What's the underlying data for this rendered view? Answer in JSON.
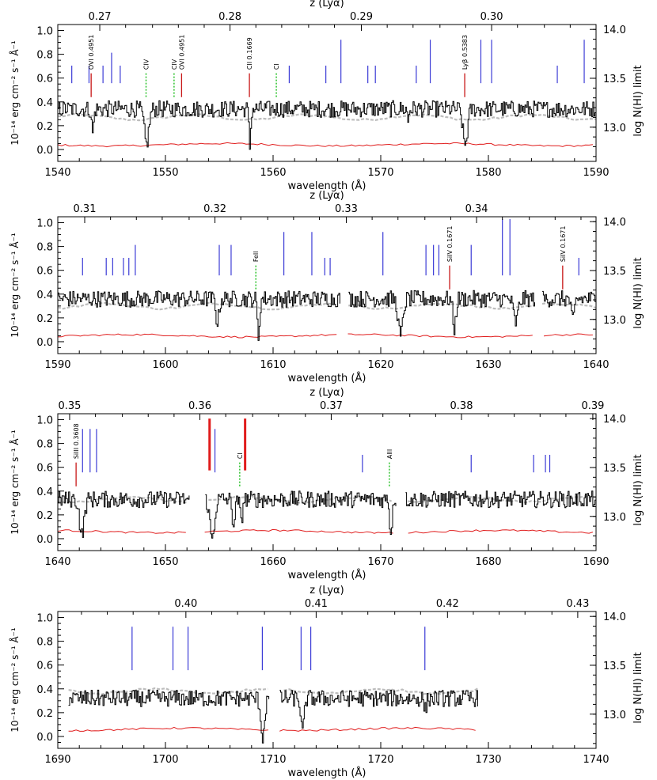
{
  "chart_data": [
    {
      "type": "line",
      "panel": 1,
      "xlim": [
        1540,
        1590
      ],
      "xticks": [
        1540,
        1550,
        1560,
        1570,
        1580,
        1590
      ],
      "ylim": [
        -0.1,
        1.05
      ],
      "yticks": [
        "0.0",
        "0.2",
        "0.4",
        "0.6",
        "0.8",
        "1.0"
      ],
      "ztick_labels": [
        "0.27",
        "0.28",
        "0.29",
        "0.30"
      ],
      "ztick_wavelengths": [
        1543.9,
        1556.0,
        1568.2,
        1580.3
      ],
      "z_minor": [
        1546.3,
        1548.8,
        1551.2,
        1553.6,
        1558.4,
        1560.8,
        1563.3,
        1565.7,
        1570.6,
        1573.0,
        1575.5,
        1577.9,
        1582.7,
        1585.2,
        1587.6
      ],
      "right_ylim": [
        12.65,
        14.05
      ],
      "right_yticks": [
        "13.0",
        "13.5",
        "14.0"
      ],
      "top_axis_label": "z (Lyα)",
      "xlabel": "wavelength (Å)",
      "ylabel": "10⁻¹⁴ erg cm⁻² s⁻¹ Å⁻¹",
      "right_ylabel": "log N(HI) limit",
      "gaps": [],
      "baseline": 0.34,
      "dashed_level": 0.27,
      "error_level": 0.04,
      "absorptions": [
        [
          1543.2,
          0.2,
          0.15
        ],
        [
          1548.2,
          0.3,
          0.3
        ],
        [
          1557.8,
          0.32,
          0.12
        ],
        [
          1577.8,
          0.3,
          0.3
        ],
        [
          1572.5,
          0.1,
          0.1
        ]
      ],
      "hi_lines": [
        [
          1541.3,
          13.5
        ],
        [
          1542.9,
          13.5
        ],
        [
          1544.2,
          13.5
        ],
        [
          1545.0,
          13.6
        ],
        [
          1545.8,
          13.5
        ],
        [
          1561.5,
          13.5
        ],
        [
          1564.9,
          13.5
        ],
        [
          1566.3,
          13.7
        ],
        [
          1568.8,
          13.5
        ],
        [
          1569.5,
          13.5
        ],
        [
          1573.3,
          13.5
        ],
        [
          1574.6,
          13.7
        ],
        [
          1579.3,
          13.7
        ],
        [
          1580.3,
          13.7
        ],
        [
          1586.4,
          13.5
        ],
        [
          1588.9,
          13.7
        ]
      ],
      "metal_lines": [
        [
          "OVI 0.4951",
          1543.1,
          "solid"
        ],
        [
          "CIV",
          1548.2,
          "dotted"
        ],
        [
          "CIV",
          1550.8,
          "dotted"
        ],
        [
          "OVI 0.4951",
          1551.5,
          "solid"
        ],
        [
          "CII 0.1669",
          1557.8,
          "solid"
        ],
        [
          "CI",
          1560.3,
          "dotted"
        ],
        [
          "Lyβ 0.5383",
          1577.8,
          "solid"
        ]
      ],
      "red_bars": []
    },
    {
      "type": "line",
      "panel": 2,
      "xlim": [
        1590,
        1640
      ],
      "xticks": [
        1590,
        1600,
        1610,
        1620,
        1630,
        1640
      ],
      "ylim": [
        -0.1,
        1.05
      ],
      "yticks": [
        "0.0",
        "0.2",
        "0.4",
        "0.6",
        "0.8",
        "1.0"
      ],
      "ztick_labels": [
        "0.31",
        "0.32",
        "0.33",
        "0.34"
      ],
      "ztick_wavelengths": [
        1592.5,
        1604.6,
        1616.8,
        1628.9
      ],
      "z_minor": [
        1594.9,
        1597.3,
        1599.7,
        1602.2,
        1607.0,
        1609.5,
        1611.9,
        1614.3,
        1619.2,
        1621.6,
        1624.1,
        1626.5,
        1631.3,
        1633.8,
        1636.2,
        1638.6
      ],
      "right_ylim": [
        12.65,
        14.05
      ],
      "right_yticks": [
        "13.0",
        "13.5",
        "14.0"
      ],
      "top_axis_label": "z (Lyα)",
      "xlabel": "wavelength (Å)",
      "ylabel": "10⁻¹⁴ erg cm⁻² s⁻¹ Å⁻¹",
      "right_ylabel": "log N(HI) limit",
      "gaps": [
        [
          1616.2,
          1616.9
        ],
        [
          1634.3,
          1634.9
        ]
      ],
      "baseline": 0.36,
      "dashed_level": 0.3,
      "error_level": 0.05,
      "absorptions": [
        [
          1604.8,
          0.2,
          0.2
        ],
        [
          1608.6,
          0.32,
          0.15
        ],
        [
          1621.8,
          0.32,
          0.3
        ],
        [
          1626.8,
          0.25,
          0.2
        ],
        [
          1632.5,
          0.2,
          0.3
        ],
        [
          1637.8,
          0.2,
          0.2
        ]
      ],
      "hi_lines": [
        [
          1592.3,
          13.5
        ],
        [
          1594.5,
          13.5
        ],
        [
          1595.1,
          13.5
        ],
        [
          1596.1,
          13.5
        ],
        [
          1596.6,
          13.5
        ],
        [
          1597.2,
          13.6
        ],
        [
          1605.0,
          13.6
        ],
        [
          1606.1,
          13.6
        ],
        [
          1611.0,
          13.7
        ],
        [
          1613.6,
          13.7
        ],
        [
          1614.8,
          13.5
        ],
        [
          1615.3,
          13.5
        ],
        [
          1620.2,
          13.7
        ],
        [
          1624.2,
          13.6
        ],
        [
          1624.9,
          13.6
        ],
        [
          1625.4,
          13.6
        ],
        [
          1628.4,
          13.6
        ],
        [
          1631.3,
          13.8
        ],
        [
          1632.0,
          13.8
        ],
        [
          1638.4,
          13.5
        ]
      ],
      "metal_lines": [
        [
          "FeII",
          1608.4,
          "dotted"
        ],
        [
          "SiIV 0.1671",
          1626.4,
          "solid"
        ],
        [
          "SiIV 0.1671",
          1636.9,
          "solid"
        ]
      ],
      "red_bars": []
    },
    {
      "type": "line",
      "panel": 3,
      "xlim": [
        1640,
        1690
      ],
      "xticks": [
        1640,
        1650,
        1660,
        1670,
        1680,
        1690
      ],
      "ylim": [
        -0.1,
        1.05
      ],
      "yticks": [
        "0.0",
        "0.2",
        "0.4",
        "0.6",
        "0.8",
        "1.0"
      ],
      "ztick_labels": [
        "0.35",
        "0.36",
        "0.37",
        "0.38",
        "0.39"
      ],
      "ztick_wavelengths": [
        1641.1,
        1653.2,
        1665.4,
        1677.5,
        1689.7
      ],
      "z_minor": [
        1643.5,
        1646.0,
        1648.4,
        1650.8,
        1655.6,
        1658.1,
        1660.5,
        1663.0,
        1667.8,
        1670.2,
        1672.7,
        1675.1,
        1680.0,
        1682.4,
        1684.8,
        1687.2
      ],
      "right_ylim": [
        12.65,
        14.05
      ],
      "right_yticks": [
        "13.0",
        "13.5",
        "14.0"
      ],
      "top_axis_label": "z (Lyα)",
      "xlabel": "wavelength (Å)",
      "ylabel": "10⁻¹⁴ erg cm⁻² s⁻¹ Å⁻¹",
      "right_ylabel": "log N(HI) limit",
      "gaps": [
        [
          1652.2,
          1653.6
        ],
        [
          1671.4,
          1672.2
        ]
      ],
      "baseline": 0.33,
      "dashed_level": 0.33,
      "error_level": 0.06,
      "absorptions": [
        [
          1642.2,
          0.3,
          0.3
        ],
        [
          1654.3,
          0.33,
          0.3
        ],
        [
          1656.3,
          0.2,
          0.2
        ],
        [
          1657.0,
          0.2,
          0.15
        ],
        [
          1670.9,
          0.3,
          0.15
        ]
      ],
      "hi_lines": [
        [
          1642.3,
          13.7
        ],
        [
          1643.0,
          13.7
        ],
        [
          1643.6,
          13.7
        ],
        [
          1654.6,
          13.7
        ],
        [
          1668.3,
          13.5
        ],
        [
          1678.4,
          13.5
        ],
        [
          1684.2,
          13.5
        ],
        [
          1685.3,
          13.5
        ],
        [
          1685.7,
          13.5
        ]
      ],
      "metal_lines": [
        [
          "SiIII 0.3608",
          1641.7,
          "solid"
        ],
        [
          "CI",
          1656.9,
          "dotted"
        ],
        [
          "AlII",
          1670.8,
          "dotted"
        ]
      ],
      "red_bars": [
        [
          1654.1,
          14.0
        ],
        [
          1657.4,
          14.0
        ]
      ]
    },
    {
      "type": "line",
      "panel": 4,
      "xlim": [
        1690,
        1740
      ],
      "xticks": [
        1690,
        1700,
        1710,
        1720,
        1730,
        1740
      ],
      "ylim": [
        -0.1,
        1.05
      ],
      "yticks": [
        "0.0",
        "0.2",
        "0.4",
        "0.6",
        "0.8",
        "1.0"
      ],
      "ztick_labels": [
        "0.40",
        "0.41",
        "0.42",
        "0.43"
      ],
      "ztick_wavelengths": [
        1701.9,
        1714.0,
        1726.2,
        1738.3
      ],
      "z_minor": [
        1692.2,
        1694.6,
        1697.0,
        1699.4,
        1704.3,
        1706.7,
        1709.2,
        1711.6,
        1716.4,
        1718.8,
        1721.3,
        1723.7,
        1728.6,
        1731.0,
        1733.4,
        1735.9
      ],
      "right_ylim": [
        12.65,
        14.05
      ],
      "right_yticks": [
        "13.0",
        "13.5",
        "14.0"
      ],
      "top_axis_label": "z (Lyα)",
      "xlabel": "wavelength (Å)",
      "ylabel": "10⁻¹⁴ erg cm⁻² s⁻¹ Å⁻¹",
      "right_ylabel": "log N(HI) limit",
      "data_range": [
        1691,
        1729
      ],
      "gaps": [
        [
          1709.6,
          1710.5
        ]
      ],
      "baseline": 0.32,
      "dashed_level": 0.38,
      "error_level": 0.06,
      "absorptions": [
        [
          1709.0,
          0.32,
          0.25
        ],
        [
          1712.7,
          0.3,
          0.2
        ],
        [
          1724.1,
          0.1,
          0.15
        ]
      ],
      "hi_lines": [
        [
          1696.9,
          13.7
        ],
        [
          1700.7,
          13.7
        ],
        [
          1702.1,
          13.7
        ],
        [
          1709.0,
          13.7
        ],
        [
          1712.6,
          13.7
        ],
        [
          1713.5,
          13.7
        ],
        [
          1724.1,
          13.7
        ]
      ],
      "metal_lines": [],
      "red_bars": []
    }
  ],
  "colors": {
    "flux": "#000000",
    "error": "#e01c1c",
    "continuum": "#bdbdbd",
    "hi_tick": "#3b3bd6",
    "metal_tick": "#c81818",
    "metal_dotted": "#2bc22b"
  }
}
